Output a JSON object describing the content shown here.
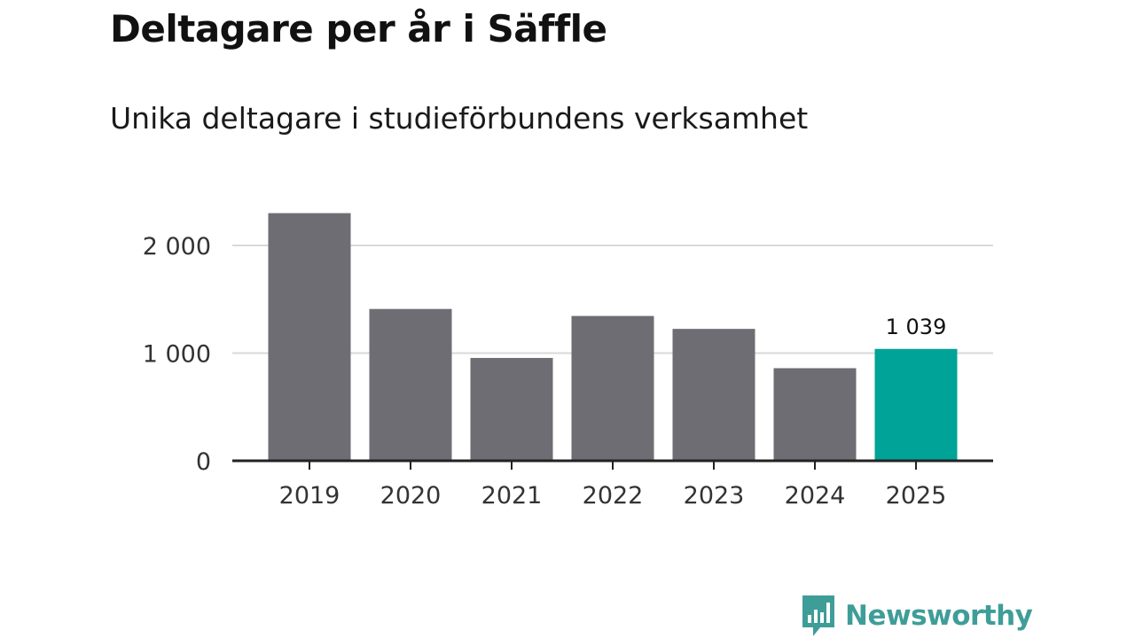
{
  "header": {
    "title": "Deltagare per år i Säffle",
    "subtitle": "Unika deltagare i studieförbundens verksamhet"
  },
  "chart_data": {
    "type": "bar",
    "title": "Deltagare per år i Säffle",
    "subtitle": "Unika deltagare i studieförbundens verksamhet",
    "xlabel": "",
    "ylabel": "",
    "categories": [
      "2019",
      "2020",
      "2021",
      "2022",
      "2023",
      "2024",
      "2025"
    ],
    "values": [
      2300,
      1410,
      955,
      1345,
      1225,
      860,
      1039
    ],
    "highlight_index": 6,
    "data_labels": [
      {
        "index": 6,
        "text": "1 039"
      }
    ],
    "ylim": [
      0,
      2500
    ],
    "yticks": [
      0,
      1000,
      2000
    ],
    "ytick_labels": [
      "0",
      "1 000",
      "2 000"
    ],
    "grid": true,
    "legend": "none"
  },
  "colors": {
    "bar": "#6e6d73",
    "highlight": "#00a397",
    "grid": "#d9d9d9",
    "axis": "#222222",
    "brand": "#3f9d98"
  },
  "brand": {
    "name": "Newsworthy",
    "icon": "newsworthy-logo-icon"
  }
}
